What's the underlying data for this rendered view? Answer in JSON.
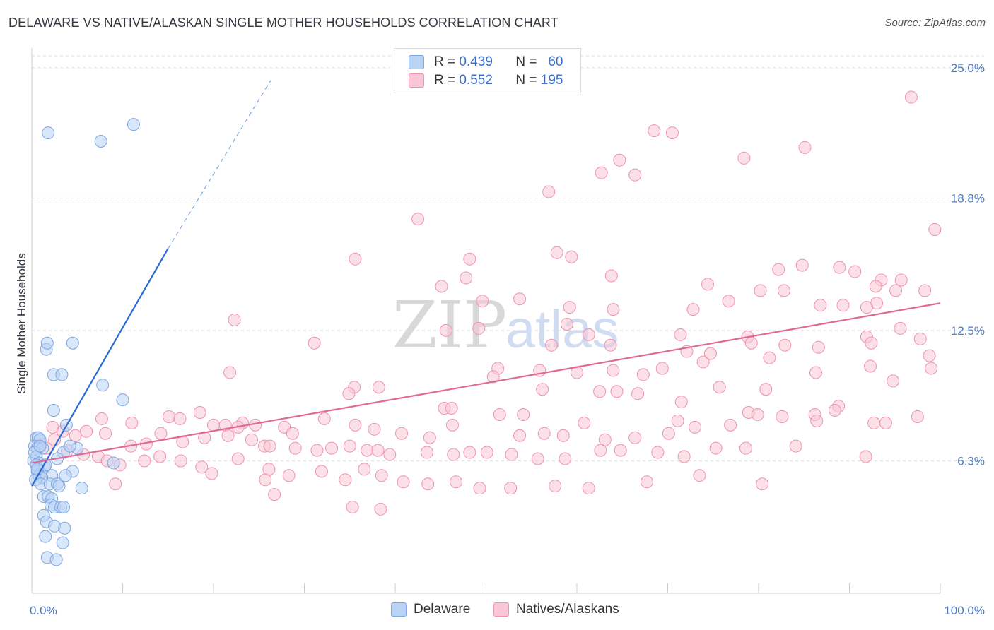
{
  "title": "DELAWARE VS NATIVE/ALASKAN SINGLE MOTHER HOUSEHOLDS CORRELATION CHART",
  "source": "Source: ZipAtlas.com",
  "watermark": {
    "zip": "ZIP",
    "atlas": "atlas"
  },
  "legend": {
    "delaware": {
      "r_label": "R =",
      "r_value": "0.439",
      "n_label": "N =",
      "n_value": "60"
    },
    "natives": {
      "r_label": "R =",
      "r_value": "0.552",
      "n_label": "N =",
      "n_value": "195"
    }
  },
  "bottom_legend": {
    "delaware": "Delaware",
    "natives": "Natives/Alaskans"
  },
  "colors": {
    "delaware_fill": "#b9d3f5",
    "delaware_stroke": "#7ea6e0",
    "delaware_line": "#2a6ad3",
    "natives_fill": "#f8c6d6",
    "natives_stroke": "#ee93b0",
    "natives_line": "#e06a93",
    "tick_text": "#4a7ac8",
    "grid": "#dddddd"
  },
  "chart_data": {
    "type": "scatter",
    "title": "DELAWARE VS NATIVE/ALASKAN SINGLE MOTHER HOUSEHOLDS CORRELATION CHART",
    "xlabel": "",
    "ylabel": "Single Mother Households",
    "xlim": [
      0,
      100
    ],
    "ylim": [
      0,
      25.8
    ],
    "x_tick_labels": [
      "0.0%",
      "100.0%"
    ],
    "y_ticks": [
      6.3,
      12.5,
      18.8,
      25.0
    ],
    "y_tick_labels": [
      "6.3%",
      "12.5%",
      "18.8%",
      "25.0%"
    ],
    "grid": "horizontal dashed",
    "legend_position": "top-center",
    "series": [
      {
        "name": "Delaware",
        "R": 0.439,
        "N": 60,
        "trend": {
          "x0": 0,
          "y0": 5.1,
          "x1": 15,
          "y1": 16.4,
          "dashed_to": [
            26.3,
            24.4
          ]
        },
        "points": [
          [
            1.8,
            21.9
          ],
          [
            7.6,
            21.5
          ],
          [
            11.2,
            22.3
          ],
          [
            1.6,
            11.6
          ],
          [
            1.7,
            11.9
          ],
          [
            4.5,
            11.9
          ],
          [
            2.4,
            10.4
          ],
          [
            3.3,
            10.4
          ],
          [
            7.8,
            9.9
          ],
          [
            10.0,
            9.2
          ],
          [
            2.4,
            8.7
          ],
          [
            3.8,
            8.0
          ],
          [
            0.5,
            7.4
          ],
          [
            0.7,
            7.4
          ],
          [
            0.9,
            7.3
          ],
          [
            0.3,
            7.0
          ],
          [
            0.6,
            6.9
          ],
          [
            1.2,
            6.9
          ],
          [
            5.0,
            6.9
          ],
          [
            3.5,
            6.7
          ],
          [
            0.5,
            6.5
          ],
          [
            0.2,
            6.3
          ],
          [
            0.8,
            6.2
          ],
          [
            1.4,
            6.0
          ],
          [
            9.0,
            6.2
          ],
          [
            0.6,
            5.8
          ],
          [
            1.0,
            5.7
          ],
          [
            4.5,
            5.8
          ],
          [
            0.8,
            5.6
          ],
          [
            2.2,
            5.6
          ],
          [
            1.1,
            5.5
          ],
          [
            3.7,
            5.6
          ],
          [
            0.4,
            5.4
          ],
          [
            1.0,
            5.2
          ],
          [
            2.0,
            5.2
          ],
          [
            2.8,
            5.2
          ],
          [
            3.0,
            5.1
          ],
          [
            5.5,
            5.0
          ],
          [
            1.3,
            4.6
          ],
          [
            1.8,
            4.6
          ],
          [
            2.2,
            4.5
          ],
          [
            2.1,
            4.2
          ],
          [
            2.5,
            4.1
          ],
          [
            3.2,
            4.1
          ],
          [
            3.5,
            4.1
          ],
          [
            1.3,
            3.7
          ],
          [
            1.6,
            3.4
          ],
          [
            2.5,
            3.2
          ],
          [
            3.6,
            3.1
          ],
          [
            1.5,
            2.7
          ],
          [
            3.4,
            2.4
          ],
          [
            1.7,
            1.7
          ],
          [
            2.7,
            1.6
          ],
          [
            0.3,
            6.7
          ],
          [
            0.5,
            6.1
          ],
          [
            1.5,
            6.1
          ],
          [
            0.9,
            7.0
          ],
          [
            2.8,
            6.4
          ],
          [
            4.2,
            7.0
          ],
          [
            0.6,
            5.9
          ]
        ]
      },
      {
        "name": "Natives/Alaskans",
        "R": 0.552,
        "N": 195,
        "trend": {
          "x0": 0,
          "y0": 6.2,
          "x1": 100,
          "y1": 13.8
        },
        "points": [
          [
            96.8,
            23.6
          ],
          [
            68.5,
            22.0
          ],
          [
            70.5,
            21.9
          ],
          [
            85.1,
            21.2
          ],
          [
            78.4,
            20.7
          ],
          [
            64.7,
            20.6
          ],
          [
            66.4,
            19.9
          ],
          [
            62.7,
            20.0
          ],
          [
            56.9,
            19.1
          ],
          [
            42.5,
            17.8
          ],
          [
            99.4,
            17.3
          ],
          [
            57.8,
            16.2
          ],
          [
            59.4,
            16.0
          ],
          [
            35.6,
            15.9
          ],
          [
            48.2,
            15.9
          ],
          [
            84.8,
            15.6
          ],
          [
            88.9,
            15.5
          ],
          [
            82.2,
            15.4
          ],
          [
            90.6,
            15.3
          ],
          [
            47.8,
            15.0
          ],
          [
            63.8,
            15.1
          ],
          [
            74.4,
            14.7
          ],
          [
            93.5,
            14.9
          ],
          [
            92.9,
            14.6
          ],
          [
            95.7,
            14.9
          ],
          [
            45.1,
            14.6
          ],
          [
            53.7,
            14.0
          ],
          [
            49.6,
            13.9
          ],
          [
            59.2,
            13.6
          ],
          [
            80.2,
            14.4
          ],
          [
            82.8,
            14.4
          ],
          [
            95.1,
            14.4
          ],
          [
            98.3,
            14.4
          ],
          [
            76.7,
            13.9
          ],
          [
            72.8,
            13.5
          ],
          [
            64.0,
            13.5
          ],
          [
            93.0,
            13.8
          ],
          [
            89.3,
            13.7
          ],
          [
            86.8,
            13.7
          ],
          [
            91.9,
            13.6
          ],
          [
            22.3,
            13.0
          ],
          [
            58.9,
            12.8
          ],
          [
            45.6,
            12.5
          ],
          [
            49.2,
            12.6
          ],
          [
            61.3,
            12.3
          ],
          [
            57.2,
            11.8
          ],
          [
            71.4,
            12.3
          ],
          [
            78.8,
            12.2
          ],
          [
            91.9,
            12.2
          ],
          [
            79.2,
            11.9
          ],
          [
            82.9,
            11.8
          ],
          [
            86.6,
            11.7
          ],
          [
            95.6,
            12.6
          ],
          [
            97.8,
            12.1
          ],
          [
            98.8,
            11.3
          ],
          [
            92.4,
            11.9
          ],
          [
            31.1,
            11.9
          ],
          [
            63.7,
            11.8
          ],
          [
            51.3,
            10.7
          ],
          [
            55.9,
            10.6
          ],
          [
            60.0,
            10.5
          ],
          [
            64.0,
            10.6
          ],
          [
            67.3,
            10.4
          ],
          [
            69.4,
            10.7
          ],
          [
            73.9,
            11.0
          ],
          [
            74.7,
            11.4
          ],
          [
            81.2,
            11.2
          ],
          [
            72.1,
            11.5
          ],
          [
            50.8,
            10.3
          ],
          [
            86.3,
            10.5
          ],
          [
            92.3,
            10.8
          ],
          [
            94.8,
            10.1
          ],
          [
            21.8,
            10.5
          ],
          [
            35.5,
            9.8
          ],
          [
            56.2,
            9.7
          ],
          [
            62.5,
            9.6
          ],
          [
            64.4,
            9.6
          ],
          [
            66.7,
            9.5
          ],
          [
            71.5,
            9.1
          ],
          [
            75.7,
            9.8
          ],
          [
            80.8,
            9.7
          ],
          [
            99.0,
            10.7
          ],
          [
            88.8,
            8.9
          ],
          [
            86.2,
            8.5
          ],
          [
            82.6,
            8.4
          ],
          [
            88.4,
            8.7
          ],
          [
            34.9,
            9.5
          ],
          [
            38.2,
            9.8
          ],
          [
            45.4,
            8.8
          ],
          [
            46.2,
            8.8
          ],
          [
            51.5,
            8.5
          ],
          [
            54.1,
            8.5
          ],
          [
            60.8,
            8.1
          ],
          [
            71.1,
            8.2
          ],
          [
            78.9,
            8.6
          ],
          [
            79.9,
            8.5
          ],
          [
            92.7,
            8.1
          ],
          [
            94.0,
            8.1
          ],
          [
            7.7,
            8.3
          ],
          [
            11.0,
            8.1
          ],
          [
            15.1,
            8.4
          ],
          [
            16.3,
            8.3
          ],
          [
            18.5,
            8.6
          ],
          [
            23.2,
            8.1
          ],
          [
            20.0,
            8.0
          ],
          [
            21.3,
            8.0
          ],
          [
            22.7,
            7.9
          ],
          [
            24.6,
            8.0
          ],
          [
            27.8,
            7.9
          ],
          [
            28.7,
            7.6
          ],
          [
            32.2,
            8.3
          ],
          [
            35.6,
            8.0
          ],
          [
            37.7,
            7.8
          ],
          [
            40.7,
            7.6
          ],
          [
            43.8,
            7.4
          ],
          [
            46.3,
            8.0
          ],
          [
            53.7,
            7.5
          ],
          [
            56.4,
            7.6
          ],
          [
            58.5,
            7.5
          ],
          [
            63.1,
            7.3
          ],
          [
            66.4,
            7.4
          ],
          [
            70.1,
            7.6
          ],
          [
            73.0,
            7.9
          ],
          [
            76.9,
            8.0
          ],
          [
            86.4,
            8.2
          ],
          [
            97.5,
            8.4
          ],
          [
            2.3,
            7.9
          ],
          [
            3.4,
            7.7
          ],
          [
            4.8,
            7.5
          ],
          [
            6.0,
            7.7
          ],
          [
            8.1,
            7.6
          ],
          [
            10.9,
            7.0
          ],
          [
            12.6,
            7.1
          ],
          [
            14.2,
            7.6
          ],
          [
            16.6,
            7.2
          ],
          [
            19.0,
            7.4
          ],
          [
            21.6,
            7.5
          ],
          [
            24.2,
            7.3
          ],
          [
            25.6,
            7.0
          ],
          [
            26.2,
            7.0
          ],
          [
            29.0,
            6.9
          ],
          [
            31.4,
            6.8
          ],
          [
            33.0,
            6.9
          ],
          [
            35.0,
            7.0
          ],
          [
            36.9,
            6.8
          ],
          [
            38.1,
            6.8
          ],
          [
            39.4,
            6.6
          ],
          [
            43.5,
            6.7
          ],
          [
            46.4,
            6.6
          ],
          [
            48.2,
            6.7
          ],
          [
            50.1,
            6.7
          ],
          [
            52.8,
            6.6
          ],
          [
            55.7,
            6.4
          ],
          [
            58.7,
            6.4
          ],
          [
            62.6,
            6.8
          ],
          [
            64.8,
            6.8
          ],
          [
            68.9,
            6.7
          ],
          [
            71.8,
            6.5
          ],
          [
            75.3,
            6.9
          ],
          [
            78.6,
            6.9
          ],
          [
            84.1,
            7.0
          ],
          [
            91.8,
            6.5
          ],
          [
            1.6,
            6.9
          ],
          [
            2.5,
            7.3
          ],
          [
            3.9,
            6.8
          ],
          [
            5.7,
            6.6
          ],
          [
            7.3,
            6.5
          ],
          [
            8.3,
            6.3
          ],
          [
            9.7,
            6.1
          ],
          [
            12.4,
            6.3
          ],
          [
            14.1,
            6.5
          ],
          [
            16.4,
            6.3
          ],
          [
            18.7,
            6.0
          ],
          [
            19.8,
            5.7
          ],
          [
            22.7,
            6.4
          ],
          [
            25.7,
            5.4
          ],
          [
            26.1,
            5.9
          ],
          [
            28.3,
            5.6
          ],
          [
            31.9,
            5.8
          ],
          [
            34.5,
            5.4
          ],
          [
            36.6,
            5.9
          ],
          [
            38.5,
            5.6
          ],
          [
            40.9,
            5.3
          ],
          [
            43.6,
            5.2
          ],
          [
            46.7,
            5.3
          ],
          [
            49.3,
            5.0
          ],
          [
            52.7,
            5.0
          ],
          [
            57.6,
            5.1
          ],
          [
            61.3,
            5.0
          ],
          [
            67.7,
            5.3
          ],
          [
            73.5,
            5.6
          ],
          [
            80.4,
            5.2
          ],
          [
            9.2,
            5.2
          ],
          [
            26.7,
            4.7
          ],
          [
            35.3,
            4.1
          ],
          [
            38.4,
            4.0
          ]
        ]
      }
    ]
  }
}
